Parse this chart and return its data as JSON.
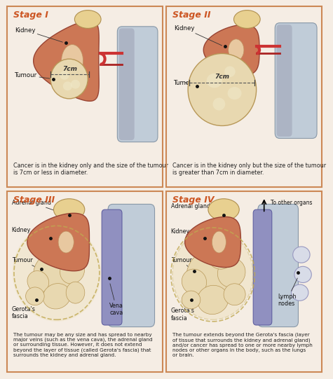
{
  "bg_color": "#f5ede4",
  "panel_bg": "#ffffff",
  "border_color": "#cc8855",
  "title_color": "#cc5522",
  "text_color": "#222222",
  "label_color": "#111111",
  "dot_color": "#111111",
  "kidney_fill": "#cc7755",
  "kidney_outline": "#994433",
  "kidney_inner": "#d4956a",
  "tumour_fill": "#e8d8b0",
  "tumour_outline": "#b89858",
  "tumour_inner": "#f0e8c8",
  "adrenal_fill": "#e8d090",
  "adrenal_outline": "#b09050",
  "spine_fill": "#c0ccd8",
  "spine_outline": "#8898a8",
  "spine_dark": "#9090a8",
  "vena_fill": "#9090c0",
  "vena_outline": "#6060a0",
  "gerota_fill": "#e8d8a0",
  "gerota_outline": "#c0a850",
  "lymph_fill": "#d8dce8",
  "lymph_outline": "#9898c0",
  "ureter_color": "#cc3333",
  "stages": [
    "Stage I",
    "Stage II",
    "Stage III",
    "Stage IV"
  ],
  "desc1": "Cancer is in the kidney only and the size of the tumour\nis 7cm or less in diameter.",
  "desc2": "Cancer is in the kidney only but the size of the tumour\nis greater than 7cm in diameter.",
  "desc3": "The tumour may be any size and has spread to nearby\nmajor veins (such as the vena cava), the adrenal gland\nor surrounding tissue. However, it does not extend\nbeyond the layer of tissue (called Gerota's fascia) that\nsurrounds the kidney and adrenal gland.",
  "desc4": "The tumour extends beyond the Gerota's fascia (layer\nof tissue that surrounds the kidney and adrenal gland)\nand/or cancer has spread to one or more nearby lymph\nnodes or other organs in the body, such as the lungs\nor brain."
}
